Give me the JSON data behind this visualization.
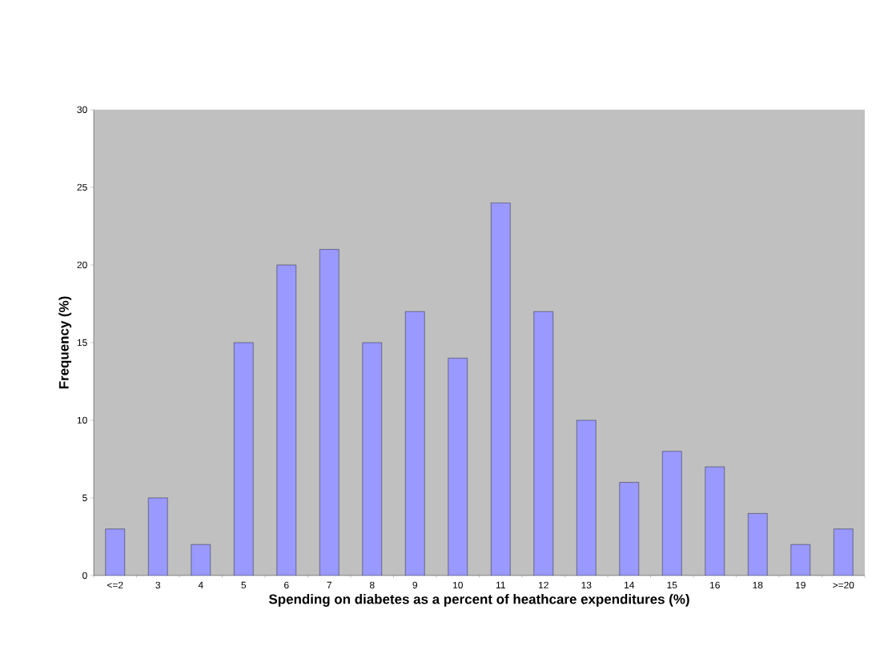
{
  "chart_data": {
    "type": "bar",
    "xlabel": "Spending on diabetes as a percent of heathcare expenditures (%)",
    "ylabel": "Frequency (%)",
    "categories": [
      "<=2",
      "3",
      "4",
      "5",
      "6",
      "7",
      "8",
      "9",
      "10",
      "11",
      "12",
      "13",
      "14",
      "15",
      "16",
      "18",
      "19",
      ">=20"
    ],
    "values": [
      3,
      5,
      2,
      15,
      20,
      21,
      15,
      17,
      14,
      24,
      17,
      10,
      6,
      8,
      7,
      4,
      2,
      3
    ],
    "color": "#9999ff",
    "ylim": [
      0,
      30
    ],
    "yticks": [
      0,
      5,
      10,
      15,
      20,
      25,
      30
    ],
    "grid": false
  }
}
